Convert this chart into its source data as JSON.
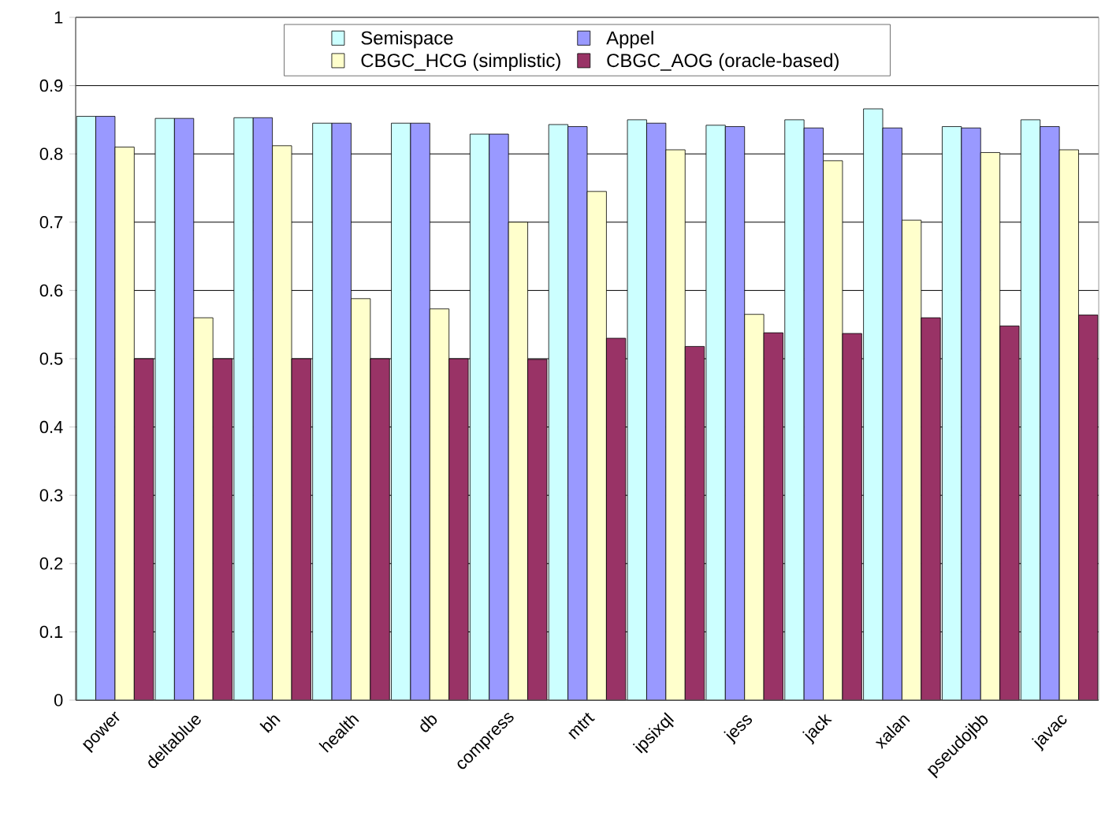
{
  "chart_data": {
    "type": "bar",
    "categories": [
      "power",
      "deltablue",
      "bh",
      "health",
      "db",
      "compress",
      "mtrt",
      "ipsixql",
      "jess",
      "jack",
      "xalan",
      "pseudojbb",
      "javac"
    ],
    "series": [
      {
        "name": "Semispace",
        "color": "#ccffff",
        "values": [
          0.855,
          0.852,
          0.853,
          0.845,
          0.845,
          0.829,
          0.843,
          0.85,
          0.842,
          0.85,
          0.866,
          0.84,
          0.85
        ]
      },
      {
        "name": "Appel",
        "color": "#9999ff",
        "values": [
          0.855,
          0.852,
          0.853,
          0.845,
          0.845,
          0.829,
          0.84,
          0.845,
          0.84,
          0.838,
          0.838,
          0.838,
          0.84
        ]
      },
      {
        "name": "CBGC_HCG (simplistic)",
        "color": "#ffffcc",
        "values": [
          0.81,
          0.56,
          0.812,
          0.588,
          0.573,
          0.7,
          0.745,
          0.806,
          0.565,
          0.79,
          0.703,
          0.802,
          0.806
        ]
      },
      {
        "name": "CBGC_AOG (oracle-based)",
        "color": "#993366",
        "values": [
          0.5,
          0.5,
          0.5,
          0.5,
          0.5,
          0.499,
          0.53,
          0.518,
          0.538,
          0.537,
          0.56,
          0.548,
          0.564
        ]
      }
    ],
    "ylim": [
      0,
      1
    ],
    "yticks": [
      0,
      0.1,
      0.2,
      0.3,
      0.4,
      0.5,
      0.6,
      0.7,
      0.8,
      0.9,
      1
    ],
    "grid": "y",
    "legend": "top"
  }
}
